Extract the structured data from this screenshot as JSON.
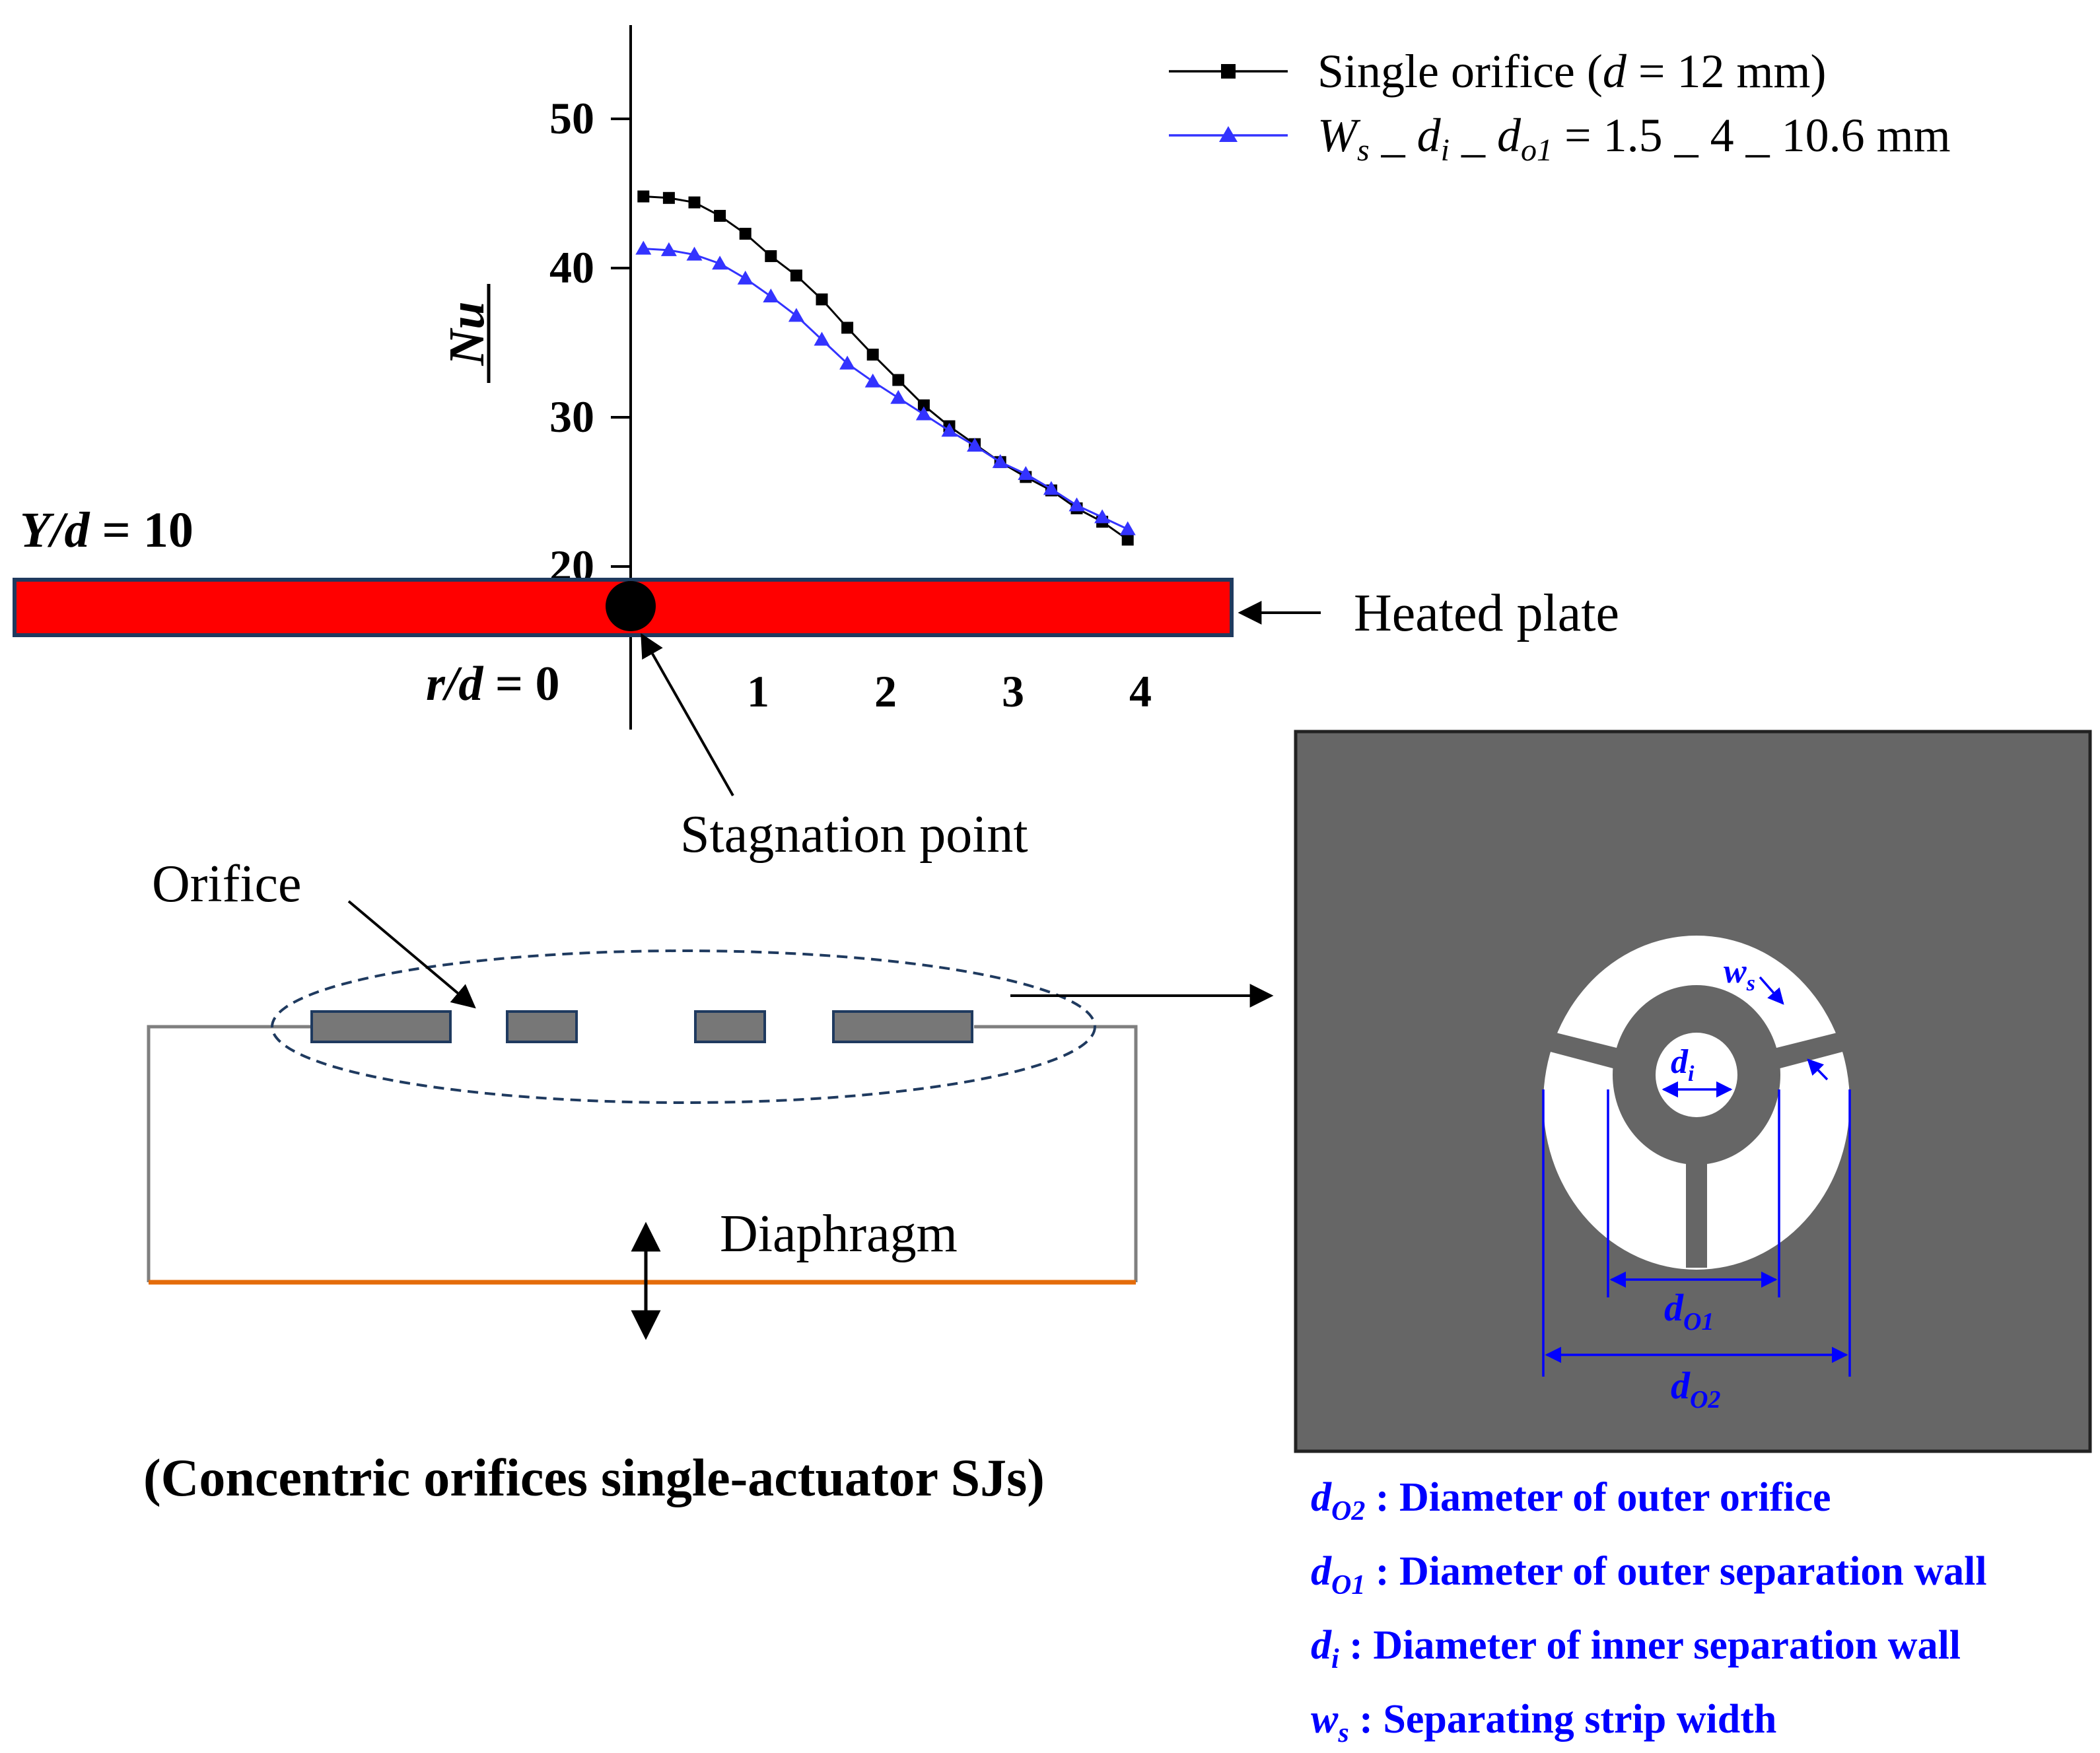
{
  "chart_data": {
    "type": "line",
    "xlabel_prefix": "r/d = ",
    "xlabel_zero": "0",
    "ylabel": "Nu",
    "xlim": [
      0,
      4.3
    ],
    "ylim": [
      19.5,
      56
    ],
    "x_ticks": [
      1,
      2,
      3,
      4
    ],
    "y_ticks": [
      20,
      30,
      40,
      50
    ],
    "legend_position": "top-right",
    "series": [
      {
        "name": "Single orifice (d = 12 mm)",
        "name_parts": [
          "Single orifice (",
          "d",
          " = 12 mm)"
        ],
        "color": "#000000",
        "marker": "square",
        "x": [
          0.1,
          0.3,
          0.5,
          0.7,
          0.9,
          1.1,
          1.3,
          1.5,
          1.7,
          1.9,
          2.1,
          2.3,
          2.5,
          2.7,
          2.9,
          3.1,
          3.3,
          3.5,
          3.7,
          3.9
        ],
        "y": [
          44.8,
          44.7,
          44.4,
          43.5,
          42.3,
          40.8,
          39.5,
          37.9,
          36.0,
          34.2,
          32.5,
          30.8,
          29.4,
          28.2,
          27.0,
          26.0,
          25.1,
          23.9,
          23.0,
          21.8
        ]
      },
      {
        "name": "Ws _ di _ do1 = 1.5 _ 4 _ 10.6 mm",
        "name_parts": [
          "W",
          "s",
          " _ ",
          "d",
          "i",
          " _ ",
          "d",
          "o1",
          " = 1.5 _ 4 _ 10.6 mm"
        ],
        "color": "#3333ff",
        "marker": "triangle",
        "x": [
          0.1,
          0.3,
          0.5,
          0.7,
          0.9,
          1.1,
          1.3,
          1.5,
          1.7,
          1.9,
          2.1,
          2.3,
          2.5,
          2.7,
          2.9,
          3.1,
          3.3,
          3.5,
          3.7,
          3.9
        ],
        "y": [
          41.3,
          41.2,
          40.9,
          40.3,
          39.3,
          38.1,
          36.8,
          35.2,
          33.6,
          32.4,
          31.3,
          30.2,
          29.1,
          28.1,
          27.0,
          26.2,
          25.2,
          24.1,
          23.3,
          22.5
        ]
      }
    ]
  },
  "labels": {
    "yd_prefix": "Y/d",
    "yd_value": " = 10",
    "heated_plate": "Heated plate",
    "stagnation_point": "Stagnation point",
    "orifice": "Orifice",
    "diaphragm": "Diaphragm",
    "caption": "(Concentric orifices single-actuator SJs)",
    "ws_label": "w",
    "ws_sub": "s",
    "di_label": "d",
    "di_sub": "i",
    "do1_label": "d",
    "do1_sub": "O1",
    "do2_label": "d",
    "do2_sub": "O2"
  },
  "definitions": [
    {
      "sym": "d",
      "sub": "O2",
      "text": " : Diameter of outer orifice"
    },
    {
      "sym": "d",
      "sub": "O1",
      "text": " : Diameter of outer separation wall"
    },
    {
      "sym": "d",
      "sub": "i",
      "text": " : Diameter of inner separation wall"
    },
    {
      "sym": "w",
      "sub": "s",
      "text": " : Separating strip width"
    }
  ],
  "colors": {
    "plate_fill": "#ff0000",
    "plate_border": "#1f3a5f",
    "orifice_plate": "#666666",
    "annotation_blue": "#0000ff",
    "diaphragm": "#e46c0a",
    "cavity_wall": "#7f7f7f",
    "slot_fill": "#777777"
  }
}
